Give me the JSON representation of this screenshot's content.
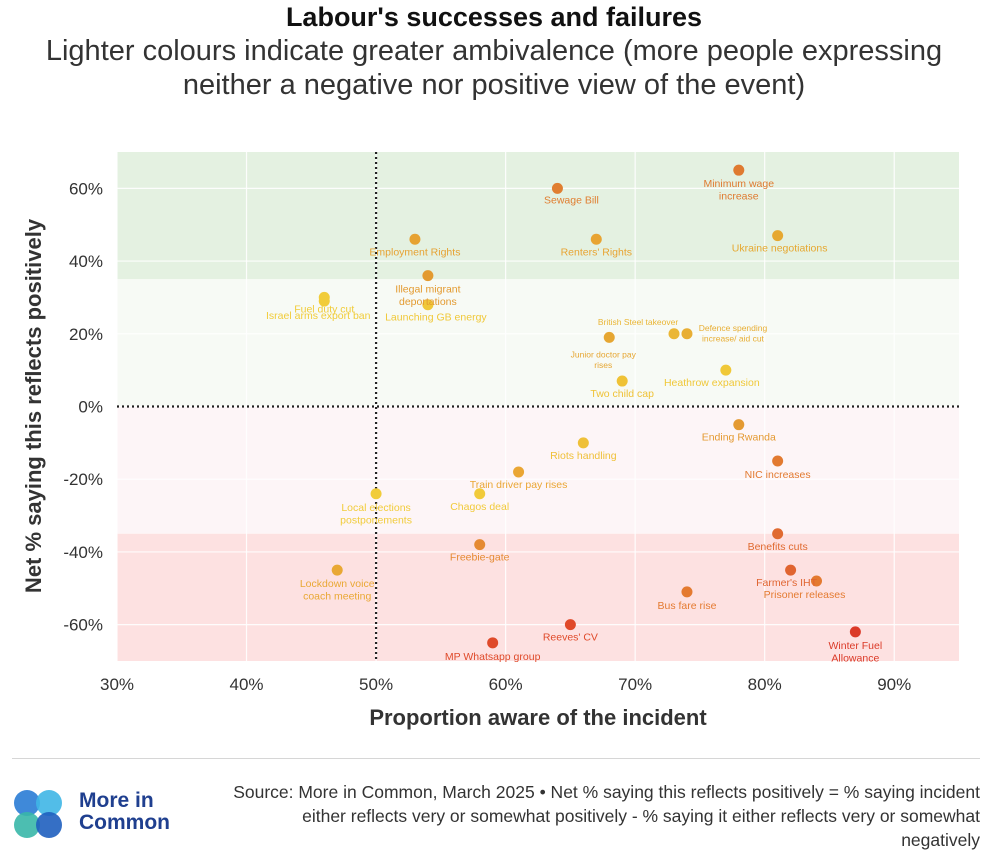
{
  "title": "Labour's successes and failures",
  "subtitle": "Lighter colours indicate greater ambivalence (more people expressing neither a negative nor positive view of the event)",
  "footer": {
    "logo_line1": "More in",
    "logo_line2": "Common",
    "source": "Source: More in Common, March 2025 • Net % saying this reflects positively = % saying incident either reflects very or somewhat positively - % saying it either reflects very or somewhat negatively"
  },
  "chart_data": {
    "type": "scatter",
    "xlabel": "Proportion aware of the incident",
    "ylabel": "Net % saying this reflects positively",
    "xlim": [
      30,
      95
    ],
    "ylim": [
      -70,
      70
    ],
    "xticks": [
      "30%",
      "40%",
      "50%",
      "60%",
      "70%",
      "80%",
      "90%"
    ],
    "yticks": [
      "60%",
      "40%",
      "20%",
      "0%",
      "-20%",
      "-40%",
      "-60%"
    ],
    "reference_lines": {
      "x": 50,
      "y": 0
    },
    "bands": [
      {
        "from": 35,
        "to": 70,
        "color": "#e4f1e1"
      },
      {
        "from": 0,
        "to": 35,
        "color": "#f7faf5"
      },
      {
        "from": -35,
        "to": 0,
        "color": "#fdf5f7"
      },
      {
        "from": -70,
        "to": -35,
        "color": "#fde1e1"
      }
    ],
    "points": [
      {
        "label": "Minimum wage increase",
        "x": 78,
        "y": 65,
        "color": "#df7a30"
      },
      {
        "label": "Sewage Bill",
        "x": 64,
        "y": 60,
        "color": "#e07e30"
      },
      {
        "label": "Employment Rights",
        "x": 53,
        "y": 46,
        "color": "#e6a232"
      },
      {
        "label": "Renters' Rights",
        "x": 67,
        "y": 46,
        "color": "#e8a432"
      },
      {
        "label": "Ukraine negotiations",
        "x": 81,
        "y": 47,
        "color": "#e6a830"
      },
      {
        "label": "Illegal migrant deportations",
        "x": 54,
        "y": 36,
        "color": "#e39a30"
      },
      {
        "label": "Fuel duty cut",
        "x": 46,
        "y": 30,
        "color": "#f1cc3a"
      },
      {
        "label": "Israel arms export ban",
        "x": 46,
        "y": 29,
        "color": "#f1cc3a"
      },
      {
        "label": "Launching GB energy",
        "x": 54,
        "y": 28,
        "color": "#f0c838"
      },
      {
        "label": "British Steel takeover",
        "x": 73,
        "y": 20,
        "color": "#eab636"
      },
      {
        "label": "Defence spending increase/ aid cut",
        "x": 74,
        "y": 20,
        "color": "#e8ae34"
      },
      {
        "label": "Junior doctor pay rises",
        "x": 68,
        "y": 19,
        "color": "#e6a632"
      },
      {
        "label": "Heathrow expansion",
        "x": 77,
        "y": 10,
        "color": "#f0c838"
      },
      {
        "label": "Two child cap",
        "x": 69,
        "y": 7,
        "color": "#efc236"
      },
      {
        "label": "Ending Rwanda",
        "x": 78,
        "y": -5,
        "color": "#e49a32"
      },
      {
        "label": "Riots handling",
        "x": 66,
        "y": -10,
        "color": "#efc038"
      },
      {
        "label": "NIC increases",
        "x": 81,
        "y": -15,
        "color": "#e27a30"
      },
      {
        "label": "Train driver pay rises",
        "x": 61,
        "y": -18,
        "color": "#eaa634"
      },
      {
        "label": "Local elections postponements",
        "x": 50,
        "y": -24,
        "color": "#f1cc3a"
      },
      {
        "label": "Chagos deal",
        "x": 58,
        "y": -24,
        "color": "#f1ca3a"
      },
      {
        "label": "Benefits cuts",
        "x": 81,
        "y": -35,
        "color": "#e06a30"
      },
      {
        "label": "Freebie-gate",
        "x": 58,
        "y": -38,
        "color": "#e58a32"
      },
      {
        "label": "Lockdown voice coach meeting",
        "x": 47,
        "y": -45,
        "color": "#e9a834"
      },
      {
        "label": "Farmer's IHT",
        "x": 82,
        "y": -45,
        "color": "#e06430"
      },
      {
        "label": "Prisoner releases",
        "x": 84,
        "y": -48,
        "color": "#e47a30"
      },
      {
        "label": "Bus fare rise",
        "x": 74,
        "y": -51,
        "color": "#e47a30"
      },
      {
        "label": "Reeves' CV",
        "x": 65,
        "y": -60,
        "color": "#e04a2a"
      },
      {
        "label": "MP Whatsapp group",
        "x": 59,
        "y": -65,
        "color": "#df4a2a"
      },
      {
        "label": "Winter Fuel Allowance",
        "x": 87,
        "y": -62,
        "color": "#db3a28"
      }
    ]
  }
}
